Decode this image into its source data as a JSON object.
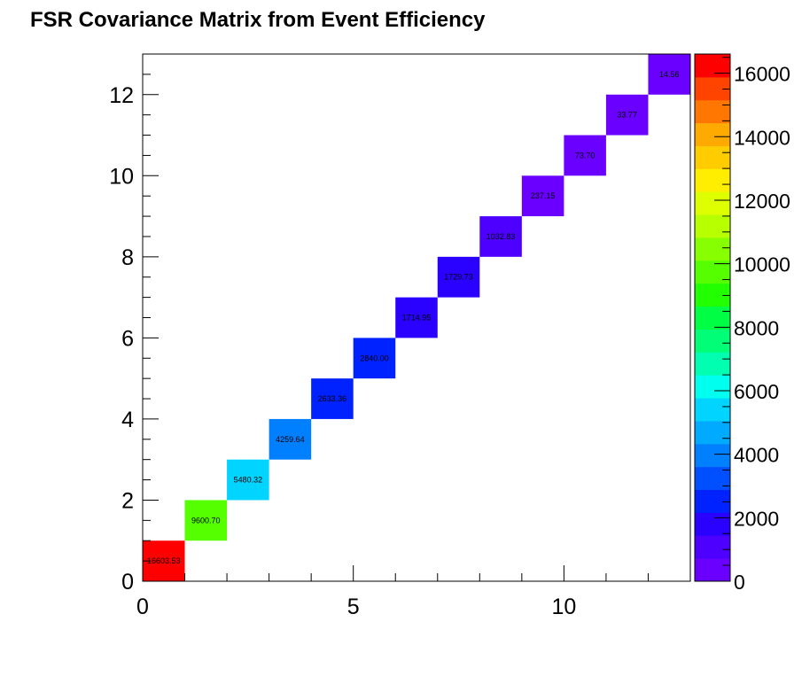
{
  "chart_data": {
    "type": "heatmap",
    "title": "FSR Covariance Matrix from Event Efficiency",
    "xlabel": "",
    "ylabel": "",
    "xlim": [
      0,
      13
    ],
    "ylim": [
      0,
      13
    ],
    "x_ticks": [
      "0",
      "5",
      "10"
    ],
    "y_ticks": [
      "0",
      "2",
      "4",
      "6",
      "8",
      "10",
      "12"
    ],
    "colorbar": {
      "range": [
        0,
        16603.53
      ],
      "ticks": [
        "0",
        "2000",
        "4000",
        "6000",
        "8000",
        "10000",
        "12000",
        "14000",
        "16000"
      ],
      "palette": [
        "#6a00ff",
        "#4d00ff",
        "#2a00ff",
        "#0022ff",
        "#0050ff",
        "#0080ff",
        "#00aaff",
        "#00d4ff",
        "#00ffee",
        "#00ffb0",
        "#00ff77",
        "#00ff44",
        "#22ff00",
        "#55ff00",
        "#88ff00",
        "#b8ff00",
        "#ddff00",
        "#ffee00",
        "#ffcc00",
        "#ffaa00",
        "#ff7700",
        "#ff4400",
        "#ff0000"
      ]
    },
    "cells": [
      {
        "x": 0,
        "y": 0,
        "value": 16603.53,
        "label": "16603.53"
      },
      {
        "x": 1,
        "y": 1,
        "value": 9600.7,
        "label": "9600.70"
      },
      {
        "x": 2,
        "y": 2,
        "value": 5480.32,
        "label": "5480.32"
      },
      {
        "x": 3,
        "y": 3,
        "value": 4259.64,
        "label": "4259.64"
      },
      {
        "x": 4,
        "y": 4,
        "value": 2633.36,
        "label": "2633.36"
      },
      {
        "x": 5,
        "y": 5,
        "value": 2840.0,
        "label": "2840.00"
      },
      {
        "x": 6,
        "y": 6,
        "value": 1714.95,
        "label": "1714.95"
      },
      {
        "x": 7,
        "y": 7,
        "value": 1729.73,
        "label": "1729.73"
      },
      {
        "x": 8,
        "y": 8,
        "value": 1032.83,
        "label": "1032.83"
      },
      {
        "x": 9,
        "y": 9,
        "value": 237.15,
        "label": "237.15"
      },
      {
        "x": 10,
        "y": 10,
        "value": 73.7,
        "label": "73.70"
      },
      {
        "x": 11,
        "y": 11,
        "value": 33.77,
        "label": "33.77"
      },
      {
        "x": 12,
        "y": 12,
        "value": 14.56,
        "label": "14.56"
      }
    ]
  }
}
